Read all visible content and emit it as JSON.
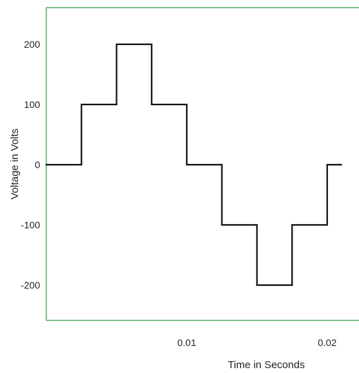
{
  "chart_data": {
    "type": "line",
    "step": true,
    "title": "",
    "xlabel": "Time in Seconds",
    "ylabel": "Voltage in Volts",
    "xlim": [
      0,
      0.021
    ],
    "ylim": [
      -250,
      250
    ],
    "x_ticks": [
      {
        "value": 0.01,
        "label": "0.01"
      },
      {
        "value": 0.02,
        "label": "0.02"
      }
    ],
    "y_ticks": [
      {
        "value": 200,
        "label": "200"
      },
      {
        "value": 100,
        "label": "100"
      },
      {
        "value": 0,
        "label": "0"
      },
      {
        "value": -100,
        "label": "-100"
      },
      {
        "value": -200,
        "label": "-200"
      }
    ],
    "series": [
      {
        "segments": [
          {
            "x0": 0,
            "x1": 0.0025,
            "y": 0
          },
          {
            "x0": 0.0025,
            "x1": 0.005,
            "y": 100
          },
          {
            "x0": 0.005,
            "x1": 0.0075,
            "y": 200
          },
          {
            "x0": 0.0075,
            "x1": 0.01,
            "y": 100
          },
          {
            "x0": 0.01,
            "x1": 0.0125,
            "y": 0
          },
          {
            "x0": 0.0125,
            "x1": 0.015,
            "y": -100
          },
          {
            "x0": 0.015,
            "x1": 0.0175,
            "y": -200
          },
          {
            "x0": 0.0175,
            "x1": 0.02,
            "y": -100
          },
          {
            "x0": 0.02,
            "x1": 0.021,
            "y": 0
          }
        ]
      }
    ],
    "colors": {
      "frame": "#2e9e3e",
      "line": "#111111"
    },
    "grid": false,
    "legend": "none"
  }
}
